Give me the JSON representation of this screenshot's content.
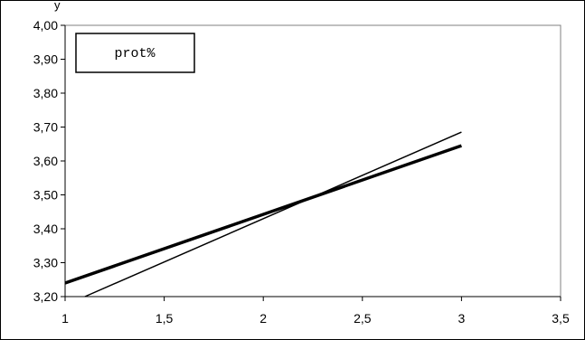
{
  "top_fragment": "y",
  "chart_data": {
    "type": "line",
    "title": "",
    "xlabel": "",
    "ylabel": "",
    "xlim": [
      1,
      3.5
    ],
    "ylim": [
      3.2,
      4.0
    ],
    "x_ticks": [
      1,
      1.5,
      2,
      2.5,
      3,
      3.5
    ],
    "x_tick_labels": [
      "1",
      "1,5",
      "2",
      "2,5",
      "3",
      "3,5"
    ],
    "y_ticks": [
      3.2,
      3.3,
      3.4,
      3.5,
      3.6,
      3.7,
      3.8,
      3.9,
      4.0
    ],
    "y_tick_labels": [
      "3,20",
      "3,30",
      "3,40",
      "3,50",
      "3,60",
      "3,70",
      "3,80",
      "3,90",
      "4,00"
    ],
    "grid": false,
    "legend": {
      "entries": [
        "prot%"
      ],
      "placement": "top-left"
    },
    "series": [
      {
        "style": "thick",
        "color": "#000000",
        "x": [
          1,
          3
        ],
        "y": [
          3.24,
          3.645
        ]
      },
      {
        "style": "thin",
        "color": "#000000",
        "x": [
          1.1,
          3
        ],
        "y": [
          3.2,
          3.685
        ]
      }
    ]
  }
}
